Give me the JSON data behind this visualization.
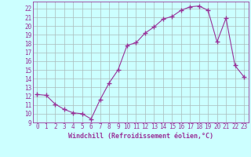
{
  "x": [
    0,
    1,
    2,
    3,
    4,
    5,
    6,
    7,
    8,
    9,
    10,
    11,
    12,
    13,
    14,
    15,
    16,
    17,
    18,
    19,
    20,
    21,
    22,
    23
  ],
  "y": [
    12.2,
    12.1,
    11.1,
    10.5,
    10.1,
    10.0,
    9.4,
    11.6,
    13.5,
    15.0,
    17.8,
    18.1,
    19.2,
    19.9,
    20.8,
    21.1,
    21.8,
    22.2,
    22.3,
    21.8,
    18.2,
    20.9,
    15.5,
    14.2
  ],
  "line_color": "#993399",
  "marker": "+",
  "marker_size": 4,
  "bg_color": "#ccffff",
  "grid_color": "#aabbbb",
  "axis_color": "#993399",
  "spine_color": "#993399",
  "xlabel": "Windchill (Refroidissement éolien,°C)",
  "ylim": [
    9,
    22.8
  ],
  "xlim": [
    -0.5,
    23.5
  ],
  "yticks": [
    9,
    10,
    11,
    12,
    13,
    14,
    15,
    16,
    17,
    18,
    19,
    20,
    21,
    22
  ],
  "xticks": [
    0,
    1,
    2,
    3,
    4,
    5,
    6,
    7,
    8,
    9,
    10,
    11,
    12,
    13,
    14,
    15,
    16,
    17,
    18,
    19,
    20,
    21,
    22,
    23
  ],
  "tick_fontsize": 5.5,
  "label_fontsize": 6.0
}
